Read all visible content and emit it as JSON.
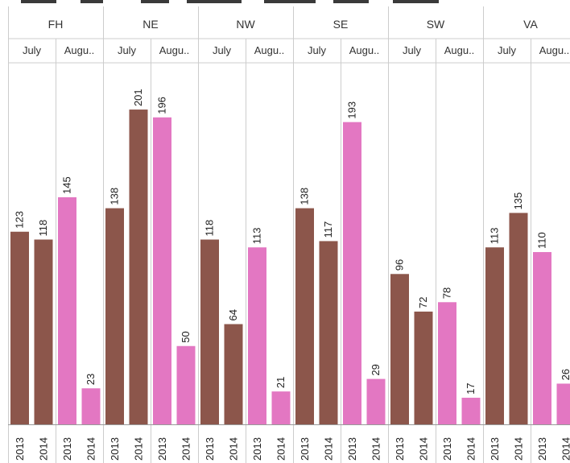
{
  "chart_data": {
    "type": "bar",
    "title": "",
    "xlabel": "",
    "ylabel": "",
    "ylim": [
      0,
      210
    ],
    "grid": false,
    "regions": [
      "FH",
      "NE",
      "NW",
      "SE",
      "SW",
      "VA"
    ],
    "months": [
      "July",
      "Augu.."
    ],
    "years": [
      "2013",
      "2014"
    ],
    "series": [
      {
        "region": "FH",
        "month": "July",
        "values": [
          123,
          118
        ]
      },
      {
        "region": "FH",
        "month": "Augu..",
        "values": [
          145,
          23
        ]
      },
      {
        "region": "NE",
        "month": "July",
        "values": [
          138,
          201
        ]
      },
      {
        "region": "NE",
        "month": "Augu..",
        "values": [
          196,
          50
        ]
      },
      {
        "region": "NW",
        "month": "July",
        "values": [
          118,
          64
        ]
      },
      {
        "region": "NW",
        "month": "Augu..",
        "values": [
          113,
          21
        ]
      },
      {
        "region": "SE",
        "month": "July",
        "values": [
          138,
          117
        ]
      },
      {
        "region": "SE",
        "month": "Augu..",
        "values": [
          193,
          29
        ]
      },
      {
        "region": "SW",
        "month": "July",
        "values": [
          96,
          72
        ]
      },
      {
        "region": "SW",
        "month": "Augu..",
        "values": [
          78,
          17
        ]
      },
      {
        "region": "VA",
        "month": "July",
        "values": [
          113,
          135
        ]
      },
      {
        "region": "VA",
        "month": "Augu..",
        "values": [
          110,
          26
        ]
      }
    ],
    "colors": {
      "July": "#8c564b",
      "Augu..": "#e377c2"
    }
  }
}
